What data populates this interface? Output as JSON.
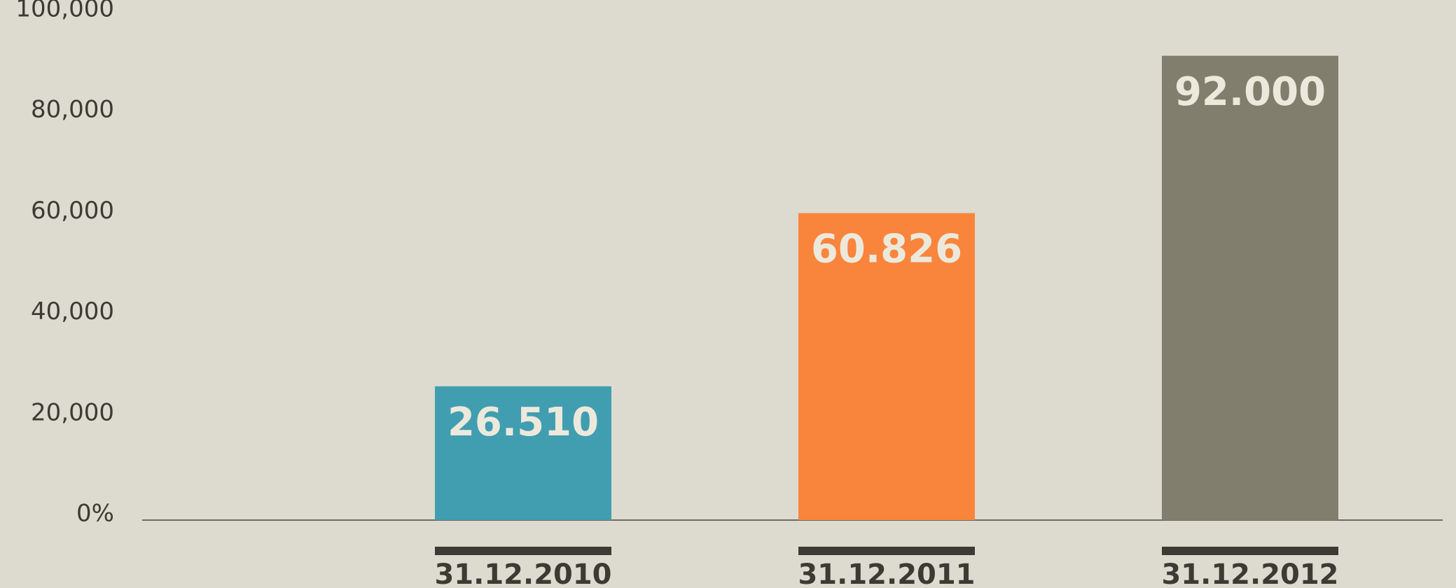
{
  "chart_data": {
    "type": "bar",
    "categories": [
      "31.12.2010",
      "31.12.2011",
      "31.12.2012"
    ],
    "values": [
      26510,
      60826,
      92000
    ],
    "value_labels": [
      "26.510",
      "60.826",
      "92.000"
    ],
    "colors": [
      "#409eb0",
      "#f9853c",
      "#817e6e"
    ],
    "ylim": [
      0,
      100000
    ],
    "yticks": [
      {
        "value": 0,
        "label": "0%"
      },
      {
        "value": 20000,
        "label": "20,000"
      },
      {
        "value": 40000,
        "label": "40,000"
      },
      {
        "value": 60000,
        "label": "60,000"
      },
      {
        "value": 80000,
        "label": "80,000"
      },
      {
        "value": 100000,
        "label": "100,000"
      }
    ],
    "grid": false
  }
}
